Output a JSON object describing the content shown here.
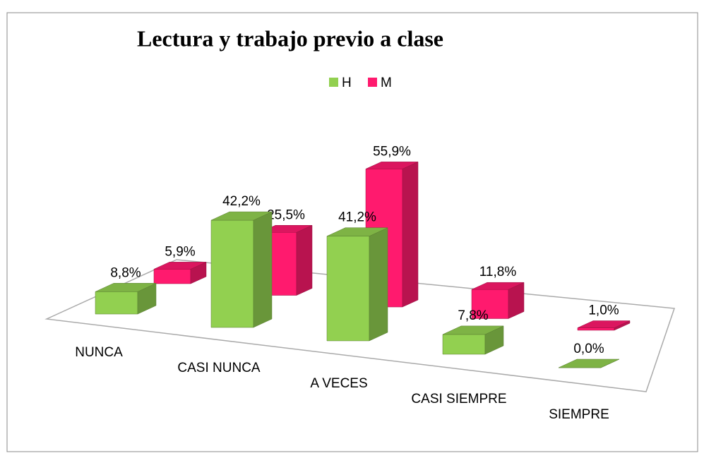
{
  "chart_data": {
    "type": "bar3d",
    "title": "Lectura y trabajo previo a clase",
    "categories": [
      "NUNCA",
      "CASI NUNCA",
      "A VECES",
      "CASI SIEMPRE",
      "SIEMPRE"
    ],
    "series": [
      {
        "name": "H",
        "color": "#92d050",
        "values": [
          8.8,
          42.2,
          41.2,
          7.8,
          0.0
        ],
        "value_labels": [
          "8,8%",
          "42,2%",
          "41,2%",
          "7,8%",
          "0,0%"
        ]
      },
      {
        "name": "M",
        "color": "#ff1a6e",
        "values": [
          5.9,
          25.5,
          55.9,
          11.8,
          1.0
        ],
        "value_labels": [
          "5,9%",
          "25,5%",
          "55,9%",
          "11,8%",
          "1,0%"
        ]
      }
    ],
    "legend": "top"
  }
}
